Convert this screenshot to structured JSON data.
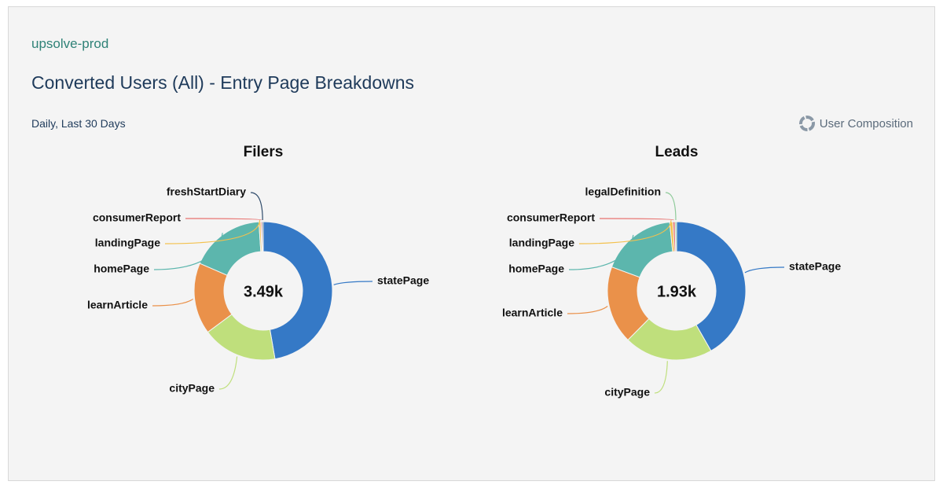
{
  "header": {
    "workspace": "upsolve-prod",
    "title": "Converted Users (All) - Entry Page Breakdowns",
    "range": "Daily, Last 30 Days",
    "action": "User Composition"
  },
  "chart_data": [
    {
      "type": "donut",
      "title": "Filers",
      "center_label": "3.49k",
      "categories": [
        "statePage",
        "cityPage",
        "learnArticle",
        "homePage",
        "landingPage",
        "consumerReport",
        "freshStartDiary"
      ],
      "values": [
        1650,
        612,
        582,
        611,
        15,
        10,
        10
      ],
      "colors": [
        "#3579c6",
        "#bfdf7c",
        "#ea914a",
        "#5cb6ad",
        "#f3c14d",
        "#e8716e",
        "#2e4a6a"
      ]
    },
    {
      "type": "donut",
      "title": "Leads",
      "center_label": "1.93k",
      "categories": [
        "statePage",
        "cityPage",
        "learnArticle",
        "homePage",
        "landingPage",
        "consumerReport",
        "legalDefinition"
      ],
      "values": [
        805,
        400,
        351,
        343,
        14,
        10,
        7
      ],
      "colors": [
        "#3579c6",
        "#bfdf7c",
        "#ea914a",
        "#5cb6ad",
        "#f3c14d",
        "#e8716e",
        "#8fcb9a"
      ]
    }
  ]
}
